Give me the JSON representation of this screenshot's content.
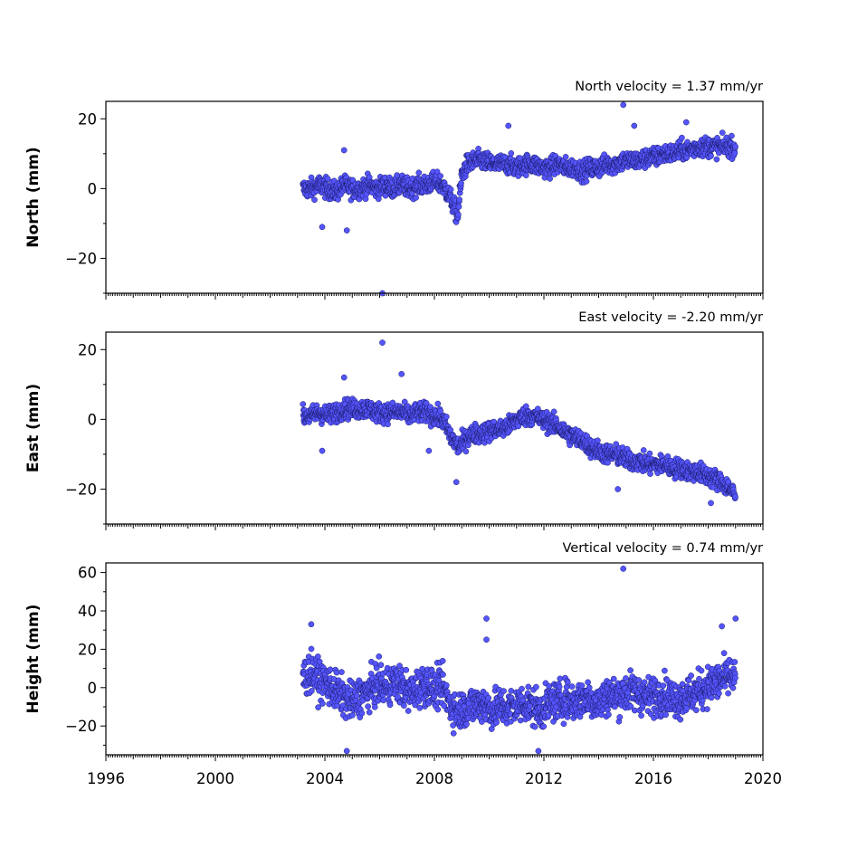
{
  "chart_data": [
    {
      "type": "scatter",
      "title": "North velocity = 1.37 mm/yr",
      "ylabel": "North (mm)",
      "xlim": [
        1996,
        2020
      ],
      "ylim": [
        -30,
        25
      ],
      "yticks": [
        -20,
        0,
        20
      ],
      "velocity_mm_per_yr": 1.37,
      "series": [
        {
          "x": [
            2003.2,
            2003.5,
            2003.8,
            2004.1,
            2004.4,
            2004.7,
            2005.0,
            2005.3,
            2005.6,
            2005.9,
            2006.2,
            2006.5,
            2006.8,
            2007.1,
            2007.4,
            2007.7,
            2008.0,
            2008.3,
            2008.6,
            2008.85,
            2009.0,
            2009.2,
            2009.5,
            2009.8,
            2010.1,
            2010.4,
            2010.7,
            2011.0,
            2011.3,
            2011.6,
            2011.9,
            2012.2,
            2012.5,
            2012.8,
            2013.1,
            2013.4,
            2013.7,
            2014.0,
            2014.3,
            2014.6,
            2014.9,
            2015.2,
            2015.5,
            2015.8,
            2016.1,
            2016.4,
            2016.7,
            2017.0,
            2017.3,
            2017.6,
            2017.9,
            2018.2,
            2018.5,
            2018.8,
            2019.0
          ],
          "y": [
            0,
            0,
            1,
            0,
            -1,
            1,
            0,
            0,
            1,
            0,
            1,
            0,
            1,
            0,
            1,
            1,
            2,
            1,
            -3,
            -8,
            4,
            7,
            8,
            8,
            7,
            7,
            7,
            6,
            7,
            7,
            6,
            6,
            7,
            6,
            6,
            5,
            6,
            6,
            7,
            7,
            8,
            8,
            8,
            9,
            9,
            10,
            10,
            11,
            11,
            12,
            12,
            12,
            12,
            12,
            12
          ]
        }
      ],
      "outliers": [
        {
          "x": 2004.7,
          "y": 11
        },
        {
          "x": 2004.8,
          "y": -12
        },
        {
          "x": 2003.9,
          "y": -11
        },
        {
          "x": 2006.1,
          "y": -30
        },
        {
          "x": 2010.7,
          "y": 18
        },
        {
          "x": 2014.9,
          "y": 24
        },
        {
          "x": 2015.3,
          "y": 18
        },
        {
          "x": 2017.2,
          "y": 19
        }
      ]
    },
    {
      "type": "scatter",
      "title": "East velocity = -2.20 mm/yr",
      "ylabel": "East (mm)",
      "xlim": [
        1996,
        2020
      ],
      "ylim": [
        -30,
        25
      ],
      "yticks": [
        -20,
        0,
        20
      ],
      "velocity_mm_per_yr": -2.2,
      "series": [
        {
          "x": [
            2003.2,
            2003.5,
            2003.8,
            2004.1,
            2004.4,
            2004.7,
            2005.0,
            2005.3,
            2005.6,
            2005.9,
            2006.2,
            2006.5,
            2006.8,
            2007.1,
            2007.4,
            2007.7,
            2008.0,
            2008.3,
            2008.6,
            2008.9,
            2009.2,
            2009.5,
            2009.8,
            2010.1,
            2010.4,
            2010.7,
            2011.0,
            2011.3,
            2011.6,
            2011.9,
            2012.2,
            2012.5,
            2012.8,
            2013.1,
            2013.4,
            2013.7,
            2014.0,
            2014.3,
            2014.6,
            2014.9,
            2015.2,
            2015.5,
            2015.8,
            2016.1,
            2016.4,
            2016.7,
            2017.0,
            2017.3,
            2017.6,
            2017.9,
            2018.2,
            2018.5,
            2018.8,
            2019.0
          ],
          "y": [
            1,
            1,
            2,
            1,
            2,
            3,
            3,
            3,
            3,
            2,
            2,
            2,
            2,
            1,
            2,
            2,
            1,
            0,
            -5,
            -8,
            -5,
            -4,
            -4,
            -3,
            -3,
            -2,
            0,
            1,
            1,
            0,
            -1,
            -2,
            -4,
            -5,
            -6,
            -8,
            -9,
            -10,
            -10,
            -11,
            -12,
            -12,
            -13,
            -13,
            -13,
            -14,
            -14,
            -15,
            -15,
            -16,
            -17,
            -18,
            -20,
            -22
          ]
        }
      ],
      "outliers": [
        {
          "x": 2006.1,
          "y": 22
        },
        {
          "x": 2004.7,
          "y": 12
        },
        {
          "x": 2006.8,
          "y": 13
        },
        {
          "x": 2003.9,
          "y": -9
        },
        {
          "x": 2007.8,
          "y": -9
        },
        {
          "x": 2008.8,
          "y": -18
        },
        {
          "x": 2014.7,
          "y": -20
        },
        {
          "x": 2018.1,
          "y": -24
        }
      ]
    },
    {
      "type": "scatter",
      "title": "Vertical velocity = 0.74 mm/yr",
      "ylabel": "Height (mm)",
      "xlim": [
        1996,
        2020
      ],
      "ylim": [
        -35,
        65
      ],
      "yticks": [
        -20,
        0,
        20,
        40,
        60
      ],
      "xticks": [
        1996,
        2000,
        2004,
        2008,
        2012,
        2016,
        2020
      ],
      "velocity_mm_per_yr": 0.74,
      "series": [
        {
          "x": [
            2003.2,
            2003.5,
            2003.8,
            2004.1,
            2004.4,
            2004.7,
            2005.0,
            2005.3,
            2005.6,
            2005.9,
            2006.2,
            2006.5,
            2006.8,
            2007.1,
            2007.4,
            2007.7,
            2008.0,
            2008.3,
            2008.6,
            2008.9,
            2009.2,
            2009.5,
            2009.8,
            2010.1,
            2010.4,
            2010.7,
            2011.0,
            2011.3,
            2011.6,
            2011.9,
            2012.2,
            2012.5,
            2012.8,
            2013.1,
            2013.4,
            2013.7,
            2014.0,
            2014.3,
            2014.6,
            2014.9,
            2015.2,
            2015.5,
            2015.8,
            2016.1,
            2016.4,
            2016.7,
            2017.0,
            2017.3,
            2017.6,
            2017.9,
            2018.2,
            2018.5,
            2018.8,
            2019.0
          ],
          "y": [
            5,
            8,
            4,
            2,
            -2,
            -5,
            -8,
            -4,
            -2,
            2,
            0,
            3,
            1,
            -3,
            0,
            2,
            -1,
            1,
            -10,
            -12,
            -10,
            -9,
            -8,
            -12,
            -10,
            -11,
            -9,
            -8,
            -10,
            -12,
            -8,
            -7,
            -6,
            -8,
            -5,
            -6,
            -8,
            -4,
            -5,
            -3,
            -2,
            -3,
            -5,
            -4,
            -3,
            -6,
            -5,
            -4,
            -2,
            0,
            2,
            4,
            6,
            5
          ]
        }
      ],
      "outliers": [
        {
          "x": 2014.9,
          "y": 62
        },
        {
          "x": 2009.9,
          "y": 36
        },
        {
          "x": 2019.0,
          "y": 36
        },
        {
          "x": 2003.5,
          "y": 33
        },
        {
          "x": 2018.5,
          "y": 32
        },
        {
          "x": 2004.8,
          "y": -33
        },
        {
          "x": 2011.8,
          "y": -33
        },
        {
          "x": 2009.9,
          "y": 25
        }
      ]
    }
  ]
}
